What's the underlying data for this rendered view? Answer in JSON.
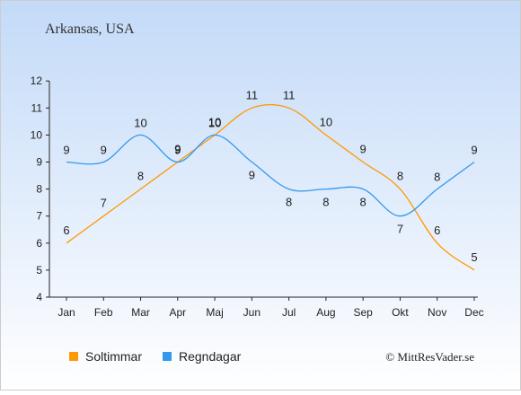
{
  "chart_data": {
    "type": "line",
    "title": "Arkansas, USA",
    "categories": [
      "Jan",
      "Feb",
      "Mar",
      "Apr",
      "Maj",
      "Jun",
      "Jul",
      "Aug",
      "Sep",
      "Okt",
      "Nov",
      "Dec"
    ],
    "series": [
      {
        "name": "Soltimmar",
        "color": "#ff9900",
        "values": [
          6,
          7,
          8,
          9,
          10,
          11,
          11,
          10,
          9,
          8,
          6,
          5
        ]
      },
      {
        "name": "Regndagar",
        "color": "#3399ee",
        "values": [
          9,
          9,
          10,
          9,
          10,
          9,
          8,
          8,
          8,
          7,
          8,
          9
        ]
      }
    ],
    "ylim": [
      4,
      12
    ],
    "yticks": [
      4,
      5,
      6,
      7,
      8,
      9,
      10,
      11,
      12
    ],
    "xlabel": "",
    "ylabel": "",
    "grid": false,
    "legend_position": "bottom-left"
  },
  "credit": "© MittResVader.se",
  "colors": {
    "background_top": "#c3daf8",
    "background_bottom": "#ffffff",
    "axis": "#222222"
  }
}
